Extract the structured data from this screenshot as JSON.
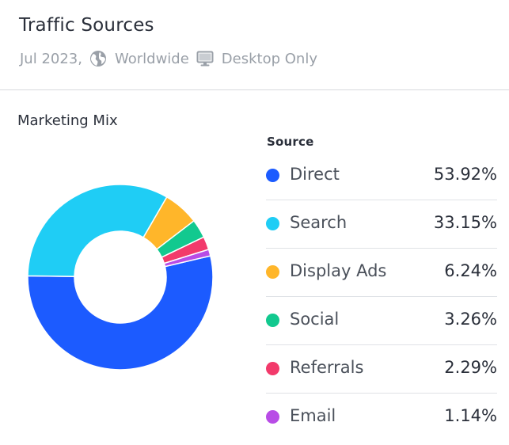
{
  "header": {
    "title": "Traffic Sources",
    "period": "Jul 2023,",
    "region": "Worldwide",
    "device": "Desktop Only",
    "icons": [
      "globe-icon",
      "desktop-icon"
    ]
  },
  "section": {
    "title": "Marketing Mix",
    "legend_heading": "Source"
  },
  "chart_data": {
    "type": "pie",
    "title": "Marketing Mix",
    "legend_title": "Source",
    "donut": true,
    "categories": [
      "Direct",
      "Search",
      "Display Ads",
      "Social",
      "Referrals",
      "Email"
    ],
    "values": [
      53.92,
      33.15,
      6.24,
      3.26,
      2.29,
      1.14
    ],
    "labels": [
      "53.92%",
      "33.15%",
      "6.24%",
      "3.26%",
      "2.29%",
      "1.14%"
    ],
    "colors": [
      "#1c5bff",
      "#1fcdf5",
      "#ffb62a",
      "#12c98f",
      "#f23a6b",
      "#b84ce6"
    ],
    "unit": "%",
    "legend_position": "right"
  }
}
